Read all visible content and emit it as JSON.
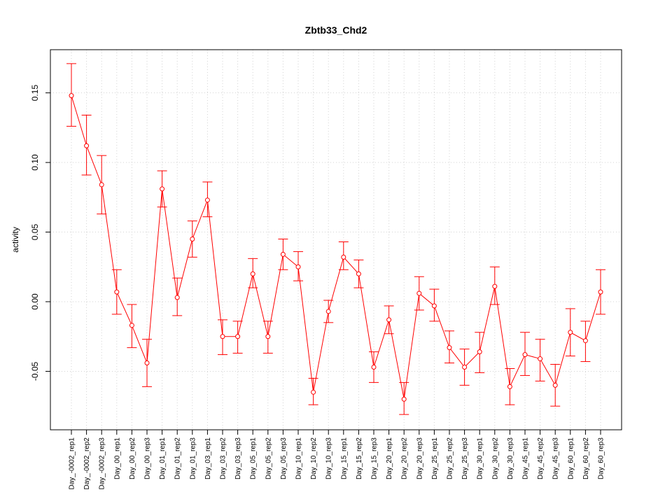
{
  "chart_data": {
    "type": "line",
    "title": "Zbtb33_Chd2",
    "xlabel": "",
    "ylabel": "activity",
    "ylim": [
      -0.092,
      0.181
    ],
    "yticks": [
      "-0.05",
      "0.00",
      "0.05",
      "0.10",
      "0.15"
    ],
    "grid": true,
    "categories": [
      "Day_-0002_rep1",
      "Day_-0002_rep2",
      "Day_-0002_rep3",
      "Day_00_rep1",
      "Day_00_rep2",
      "Day_00_rep3",
      "Day_01_rep1",
      "Day_01_rep2",
      "Day_01_rep3",
      "Day_03_rep1",
      "Day_03_rep2",
      "Day_03_rep3",
      "Day_05_rep1",
      "Day_05_rep2",
      "Day_05_rep3",
      "Day_10_rep1",
      "Day_10_rep2",
      "Day_10_rep3",
      "Day_15_rep1",
      "Day_15_rep2",
      "Day_15_rep3",
      "Day_20_rep1",
      "Day_20_rep2",
      "Day_20_rep3",
      "Day_25_rep1",
      "Day_25_rep2",
      "Day_25_rep3",
      "Day_30_rep1",
      "Day_30_rep2",
      "Day_30_rep3",
      "Day_45_rep1",
      "Day_45_rep2",
      "Day_45_rep3",
      "Day_60_rep1",
      "Day_60_rep2",
      "Day_60_rep3"
    ],
    "series": [
      {
        "color": "#ff0000",
        "values": [
          0.148,
          0.112,
          0.084,
          0.007,
          -0.017,
          -0.044,
          0.081,
          0.003,
          0.045,
          0.073,
          -0.025,
          -0.025,
          0.02,
          -0.025,
          0.034,
          0.025,
          -0.065,
          -0.007,
          0.032,
          0.02,
          -0.047,
          -0.013,
          -0.07,
          0.006,
          -0.003,
          -0.033,
          -0.047,
          -0.036,
          0.011,
          -0.061,
          -0.038,
          -0.041,
          -0.06,
          -0.022,
          -0.028,
          0.007
        ],
        "upper": [
          0.171,
          0.134,
          0.105,
          0.023,
          -0.002,
          -0.027,
          0.094,
          0.017,
          0.058,
          0.086,
          -0.013,
          -0.014,
          0.031,
          -0.014,
          0.045,
          0.036,
          -0.055,
          0.001,
          0.043,
          0.03,
          -0.036,
          -0.003,
          -0.058,
          0.018,
          0.009,
          -0.021,
          -0.034,
          -0.022,
          0.025,
          -0.048,
          -0.022,
          -0.027,
          -0.045,
          -0.005,
          -0.014,
          0.023
        ],
        "lower": [
          0.126,
          0.091,
          0.063,
          -0.009,
          -0.033,
          -0.061,
          0.068,
          -0.01,
          0.032,
          0.061,
          -0.038,
          -0.037,
          0.01,
          -0.037,
          0.023,
          0.015,
          -0.074,
          -0.015,
          0.023,
          0.01,
          -0.058,
          -0.023,
          -0.081,
          -0.006,
          -0.014,
          -0.044,
          -0.06,
          -0.051,
          -0.002,
          -0.074,
          -0.053,
          -0.057,
          -0.075,
          -0.039,
          -0.043,
          -0.009
        ]
      }
    ]
  }
}
